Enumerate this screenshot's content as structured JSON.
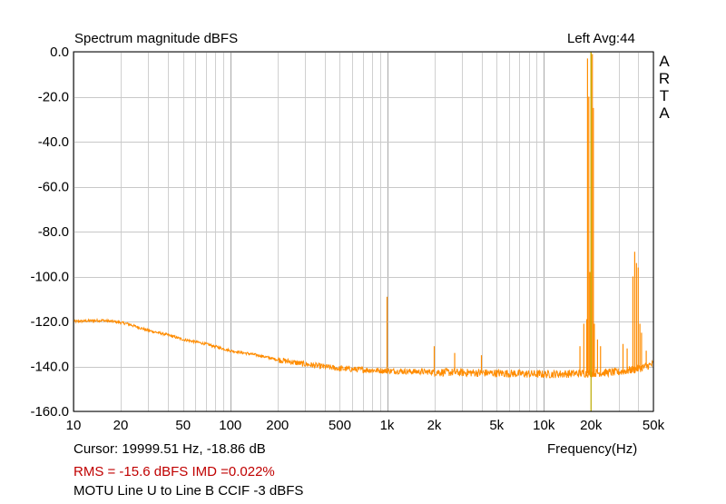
{
  "chart_data": {
    "type": "line",
    "title": "Spectrum magnitude dBFS",
    "channel_label": "Left  Avg:44",
    "brand": [
      "A",
      "R",
      "T",
      "A"
    ],
    "xlabel": "Frequency(Hz)",
    "ylabel": "",
    "x_scale": "log",
    "xlim": [
      10,
      50000
    ],
    "ylim": [
      -160,
      0
    ],
    "grid": true,
    "x_ticks": [
      {
        "value": 10,
        "label": "10"
      },
      {
        "value": 20,
        "label": "20"
      },
      {
        "value": 50,
        "label": "50"
      },
      {
        "value": 100,
        "label": "100"
      },
      {
        "value": 200,
        "label": "200"
      },
      {
        "value": 500,
        "label": "500"
      },
      {
        "value": 1000,
        "label": "1k"
      },
      {
        "value": 2000,
        "label": "2k"
      },
      {
        "value": 5000,
        "label": "5k"
      },
      {
        "value": 10000,
        "label": "10k"
      },
      {
        "value": 20000,
        "label": "20k"
      },
      {
        "value": 50000,
        "label": "50k"
      }
    ],
    "y_ticks": [
      {
        "value": 0,
        "label": "0.0"
      },
      {
        "value": -20,
        "label": "-20.0"
      },
      {
        "value": -40,
        "label": "-40.0"
      },
      {
        "value": -60,
        "label": "-60.0"
      },
      {
        "value": -80,
        "label": "-80.0"
      },
      {
        "value": -100,
        "label": "-100.0"
      },
      {
        "value": -120,
        "label": "-120.0"
      },
      {
        "value": -140,
        "label": "-140.0"
      },
      {
        "value": -160,
        "label": "-160.0"
      }
    ],
    "series": [
      {
        "color": "#ff8c00",
        "noise_floor": [
          [
            10,
            -120
          ],
          [
            15,
            -119.5
          ],
          [
            18,
            -120
          ],
          [
            22,
            -121
          ],
          [
            30,
            -124
          ],
          [
            40,
            -126
          ],
          [
            50,
            -128
          ],
          [
            70,
            -130
          ],
          [
            100,
            -133
          ],
          [
            150,
            -135
          ],
          [
            200,
            -137
          ],
          [
            300,
            -139
          ],
          [
            500,
            -141
          ],
          [
            1000,
            -142
          ],
          [
            2000,
            -142.5
          ],
          [
            5000,
            -143
          ],
          [
            10000,
            -143.5
          ],
          [
            20000,
            -143
          ],
          [
            30000,
            -142.5
          ],
          [
            40000,
            -141
          ],
          [
            50000,
            -139
          ]
        ],
        "peaks": [
          [
            1000,
            -109
          ],
          [
            2000,
            -131
          ],
          [
            2700,
            -134
          ],
          [
            4000,
            -135
          ],
          [
            17000,
            -131
          ],
          [
            18000,
            -121
          ],
          [
            18800,
            -119
          ],
          [
            19000,
            -3
          ],
          [
            19350,
            -20
          ],
          [
            19650,
            -98
          ],
          [
            20000,
            -0.5
          ],
          [
            20400,
            -1
          ],
          [
            20700,
            -25
          ],
          [
            21000,
            -121
          ],
          [
            22000,
            -128
          ],
          [
            23000,
            -131
          ],
          [
            32000,
            -130
          ],
          [
            34000,
            -132
          ],
          [
            37000,
            -100
          ],
          [
            38000,
            -89
          ],
          [
            39000,
            -94
          ],
          [
            40000,
            -96
          ],
          [
            41000,
            -121
          ],
          [
            42000,
            -125
          ],
          [
            45000,
            -133
          ]
        ]
      }
    ],
    "cursor": {
      "x": 20000,
      "color": "#c0b000"
    }
  },
  "footer": {
    "cursor_text": "Cursor: 19999.51 Hz, -18.86 dB",
    "stats_text": "RMS =  -15.6 dBFS   IMD =0.022%",
    "caption_text": "MOTU Line U to Line B CCIF -3 dBFS"
  }
}
